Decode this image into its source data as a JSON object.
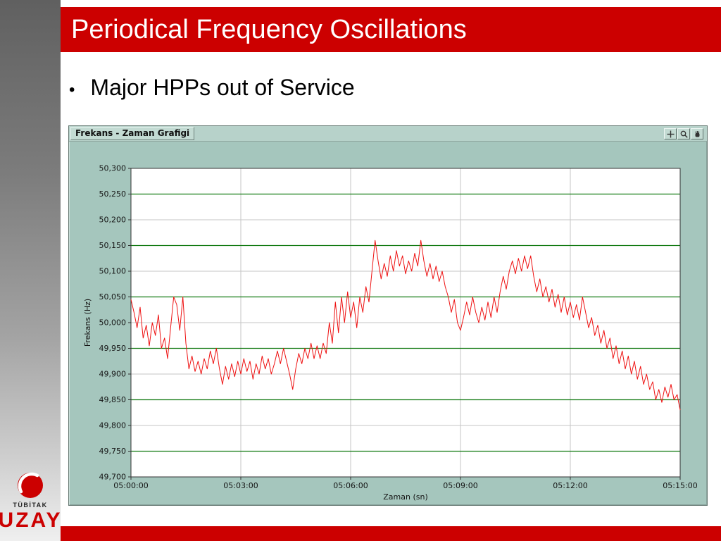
{
  "slide": {
    "title": "Periodical Frequency Oscillations",
    "bullet_marker": "•",
    "bullet": "Major HPPs out of Service"
  },
  "logo": {
    "org": "TÜBİTAK",
    "name": "UZAY"
  },
  "colors": {
    "accent_red": "#cc0000",
    "chart_bg": "#a5c6bd",
    "chart_strip": "#b7d2ca",
    "chart_label_bg": "#c3dbd3",
    "plot_line": "#ee1111",
    "grid_green": "#127a12",
    "grid_gray": "#c6c6c6",
    "plot_border": "#333333",
    "axis_text": "#141414"
  },
  "chart_window": {
    "title": "Frekans - Zaman Grafigi",
    "toolbar_icons": [
      "crosshair-icon",
      "magnifier-icon",
      "hand-icon"
    ]
  },
  "chart_data": {
    "type": "line",
    "title": "Frekans - Zaman Grafigi",
    "xlabel": "Zaman (sn)",
    "ylabel": "Frekans (Hz)",
    "ylim": [
      49.7,
      50.3
    ],
    "xlim_seconds": [
      0,
      900
    ],
    "y_tick_values": [
      50.3,
      50.25,
      50.2,
      50.15,
      50.1,
      50.05,
      50.0,
      49.95,
      49.9,
      49.85,
      49.8,
      49.75,
      49.7
    ],
    "y_tick_labels": [
      "50,300",
      "50,250",
      "50,200",
      "50,150",
      "50,100",
      "50,050",
      "50,000",
      "49,950",
      "49,900",
      "49,850",
      "49,800",
      "49,750",
      "49,700"
    ],
    "x_tick_seconds": [
      0,
      180,
      360,
      540,
      720,
      900
    ],
    "x_tick_labels": [
      "05:00:00",
      "05:03:00",
      "05:06:00",
      "05:09:00",
      "05:12:00",
      "05:15:00"
    ],
    "grid": {
      "h_green": [
        50.25,
        50.15,
        50.05,
        49.95,
        49.85,
        49.75
      ],
      "h_gray": [
        50.2,
        50.1,
        50.0,
        49.9,
        49.8
      ],
      "v_gray_seconds": [
        180,
        360,
        540,
        720
      ]
    },
    "legend": "none",
    "series": [
      {
        "name": "Frekans",
        "x_start_seconds": 0,
        "x_step_seconds": 5,
        "values": [
          50.045,
          50.02,
          49.99,
          50.03,
          49.97,
          49.995,
          49.955,
          50.0,
          49.975,
          50.015,
          49.95,
          49.97,
          49.93,
          49.99,
          50.05,
          50.035,
          49.985,
          50.05,
          49.96,
          49.91,
          49.935,
          49.905,
          49.925,
          49.9,
          49.93,
          49.91,
          49.945,
          49.92,
          49.95,
          49.91,
          49.88,
          49.915,
          49.89,
          49.92,
          49.895,
          49.925,
          49.9,
          49.93,
          49.905,
          49.925,
          49.89,
          49.92,
          49.9,
          49.935,
          49.91,
          49.93,
          49.9,
          49.92,
          49.945,
          49.92,
          49.95,
          49.925,
          49.9,
          49.87,
          49.91,
          49.94,
          49.92,
          49.95,
          49.93,
          49.96,
          49.93,
          49.955,
          49.93,
          49.96,
          49.94,
          50.0,
          49.96,
          50.04,
          49.98,
          50.05,
          50.0,
          50.06,
          50.01,
          50.04,
          49.99,
          50.05,
          50.02,
          50.07,
          50.04,
          50.1,
          50.16,
          50.12,
          50.085,
          50.115,
          50.09,
          50.13,
          50.1,
          50.14,
          50.11,
          50.13,
          50.095,
          50.12,
          50.1,
          50.135,
          50.11,
          50.16,
          50.12,
          50.09,
          50.115,
          50.085,
          50.11,
          50.08,
          50.1,
          50.07,
          50.05,
          50.02,
          50.045,
          50.0,
          49.985,
          50.01,
          50.04,
          50.015,
          50.05,
          50.02,
          50.0,
          50.03,
          50.005,
          50.04,
          50.01,
          50.05,
          50.02,
          50.06,
          50.09,
          50.065,
          50.1,
          50.12,
          50.095,
          50.125,
          50.1,
          50.13,
          50.105,
          50.13,
          50.09,
          50.06,
          50.085,
          50.05,
          50.07,
          50.04,
          50.065,
          50.03,
          50.055,
          50.02,
          50.05,
          50.015,
          50.04,
          50.01,
          50.035,
          50.005,
          50.05,
          50.02,
          49.99,
          50.01,
          49.975,
          49.995,
          49.96,
          49.985,
          49.95,
          49.97,
          49.93,
          49.955,
          49.92,
          49.945,
          49.91,
          49.935,
          49.9,
          49.925,
          49.89,
          49.915,
          49.88,
          49.9,
          49.87,
          49.885,
          49.85,
          49.87,
          49.845,
          49.875,
          49.855,
          49.88,
          49.85,
          49.86,
          49.83
        ]
      }
    ]
  }
}
